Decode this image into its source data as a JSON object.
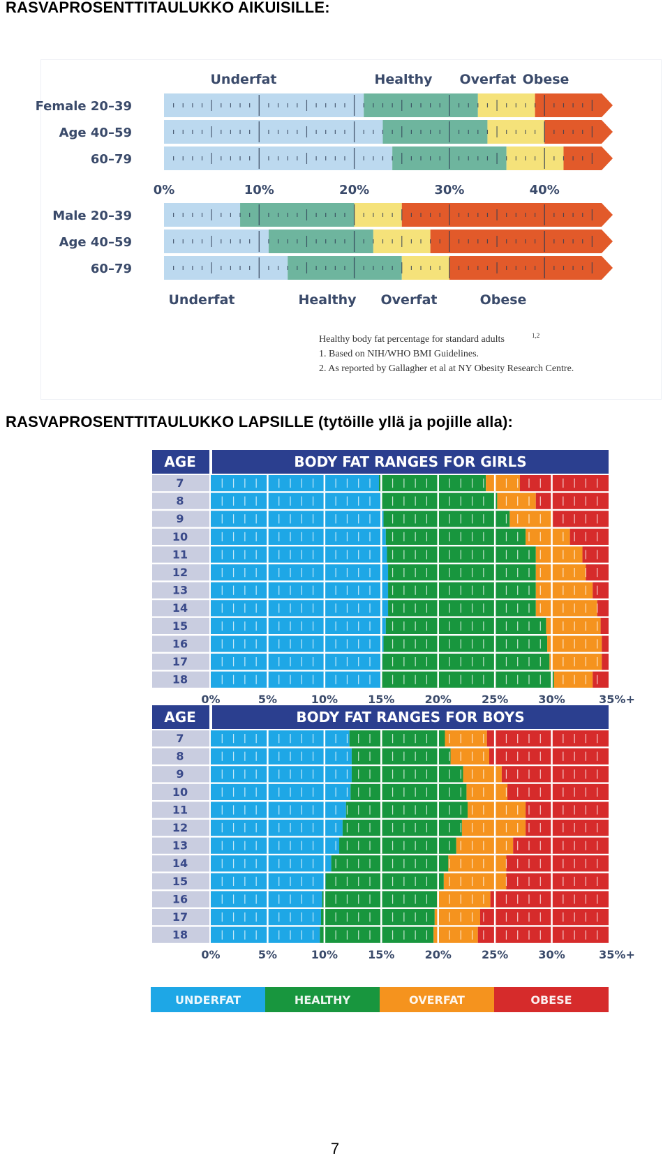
{
  "headings": {
    "adults": "RASVAPROSENTTITAULUKKO AIKUISILLE:",
    "children": "RASVAPROSENTTITAULUKKO LAPSILLE (tytöille yllä ja pojille alla):"
  },
  "page_number": "7",
  "colors": {
    "adult_underfat": "#bcd9ef",
    "adult_healthy": "#6eb59e",
    "adult_overfat": "#f5e27a",
    "adult_obese": "#e25a2a",
    "kid_underfat": "#1ea7e6",
    "kid_healthy": "#18963e",
    "kid_overfat": "#f5931e",
    "kid_obese": "#d62b2b",
    "kid_header": "#2b3f8f",
    "kid_age_cell": "#c9cde0"
  },
  "chart_data": [
    {
      "type": "bar",
      "subtype": "stacked-range",
      "xaxis_ticks": [
        "0%",
        "10%",
        "20%",
        "30%",
        "40%"
      ],
      "xlim": [
        0,
        46
      ],
      "categories_top": [
        "Underfat",
        "Healthy",
        "Overfat",
        "Obese"
      ],
      "categories_bottom": [
        "Underfat",
        "Healthy",
        "Overfat",
        "Obese"
      ],
      "groups": [
        {
          "label": "Female 20-39",
          "rows": [
            {
              "label": "Female 20–39",
              "healthy_from": 21,
              "overfat_from": 33,
              "obese_from": 39
            },
            {
              "label": "Age 40–59",
              "healthy_from": 23,
              "overfat_from": 34,
              "obese_from": 40
            },
            {
              "label": "60–79",
              "healthy_from": 24,
              "overfat_from": 36,
              "obese_from": 42
            }
          ]
        },
        {
          "label": "Male 20-39",
          "rows": [
            {
              "label": "Male 20–39",
              "healthy_from": 8,
              "overfat_from": 20,
              "obese_from": 25
            },
            {
              "label": "Age 40–59",
              "healthy_from": 11,
              "overfat_from": 22,
              "obese_from": 28
            },
            {
              "label": "60–79",
              "healthy_from": 13,
              "overfat_from": 25,
              "obese_from": 30
            }
          ]
        }
      ],
      "footnotes": [
        "Healthy body fat percentage for standard adults",
        "1. Based on NIH/WHO BMI Guidelines.",
        "2. As reported by Gallagher et al at NY Obesity Research Centre."
      ],
      "footnote_sup": "1,2"
    },
    {
      "type": "bar",
      "subtype": "stacked-range",
      "title": "BODY FAT RANGES FOR GIRLS",
      "age_header": "AGE",
      "xaxis_ticks": [
        "0%",
        "5%",
        "10%",
        "15%",
        "20%",
        "25%",
        "30%",
        "35%+"
      ],
      "xlim": [
        0,
        35
      ],
      "rows": [
        {
          "age": "7",
          "healthy_from": 14.8,
          "overfat_from": 24.2,
          "obese_from": 27.2
        },
        {
          "age": "8",
          "healthy_from": 15.0,
          "overfat_from": 25.2,
          "obese_from": 28.6
        },
        {
          "age": "9",
          "healthy_from": 15.2,
          "overfat_from": 26.3,
          "obese_from": 30.1
        },
        {
          "age": "10",
          "healthy_from": 15.4,
          "overfat_from": 27.7,
          "obese_from": 31.6
        },
        {
          "age": "11",
          "healthy_from": 15.5,
          "overfat_from": 28.6,
          "obese_from": 32.7
        },
        {
          "age": "12",
          "healthy_from": 15.6,
          "overfat_from": 28.6,
          "obese_from": 33.0
        },
        {
          "age": "13",
          "healthy_from": 15.6,
          "overfat_from": 28.6,
          "obese_from": 33.6
        },
        {
          "age": "14",
          "healthy_from": 15.6,
          "overfat_from": 28.6,
          "obese_from": 34.0
        },
        {
          "age": "15",
          "healthy_from": 15.4,
          "overfat_from": 29.5,
          "obese_from": 34.3
        },
        {
          "age": "16",
          "healthy_from": 15.2,
          "overfat_from": 29.6,
          "obese_from": 34.4
        },
        {
          "age": "17",
          "healthy_from": 15.1,
          "overfat_from": 29.8,
          "obese_from": 34.4
        },
        {
          "age": "18",
          "healthy_from": 15.0,
          "overfat_from": 30.2,
          "obese_from": 33.6
        }
      ]
    },
    {
      "type": "bar",
      "subtype": "stacked-range",
      "title": "BODY FAT RANGES FOR BOYS",
      "age_header": "AGE",
      "xaxis_ticks": [
        "0%",
        "5%",
        "10%",
        "15%",
        "20%",
        "25%",
        "30%",
        "35%+"
      ],
      "xlim": [
        0,
        35
      ],
      "rows": [
        {
          "age": "7",
          "healthy_from": 12.2,
          "overfat_from": 20.6,
          "obese_from": 24.3
        },
        {
          "age": "8",
          "healthy_from": 12.4,
          "overfat_from": 21.1,
          "obese_from": 24.5
        },
        {
          "age": "9",
          "healthy_from": 12.4,
          "overfat_from": 22.2,
          "obese_from": 25.6
        },
        {
          "age": "10",
          "healthy_from": 12.3,
          "overfat_from": 22.5,
          "obese_from": 26.1
        },
        {
          "age": "11",
          "healthy_from": 11.9,
          "overfat_from": 22.6,
          "obese_from": 27.7
        },
        {
          "age": "12",
          "healthy_from": 11.6,
          "overfat_from": 22.1,
          "obese_from": 27.7
        },
        {
          "age": "13",
          "healthy_from": 11.3,
          "overfat_from": 21.6,
          "obese_from": 26.6
        },
        {
          "age": "14",
          "healthy_from": 10.6,
          "overfat_from": 20.9,
          "obese_from": 26.0
        },
        {
          "age": "15",
          "healthy_from": 10.1,
          "overfat_from": 20.5,
          "obese_from": 26.0
        },
        {
          "age": "16",
          "healthy_from": 9.8,
          "overfat_from": 19.9,
          "obese_from": 24.6
        },
        {
          "age": "17",
          "healthy_from": 9.7,
          "overfat_from": 19.7,
          "obese_from": 23.7
        },
        {
          "age": "18",
          "healthy_from": 9.6,
          "overfat_from": 19.6,
          "obese_from": 23.5
        }
      ]
    }
  ],
  "legend": {
    "underfat": "UNDERFAT",
    "healthy": "HEALTHY",
    "overfat": "OVERFAT",
    "obese": "OBESE"
  }
}
